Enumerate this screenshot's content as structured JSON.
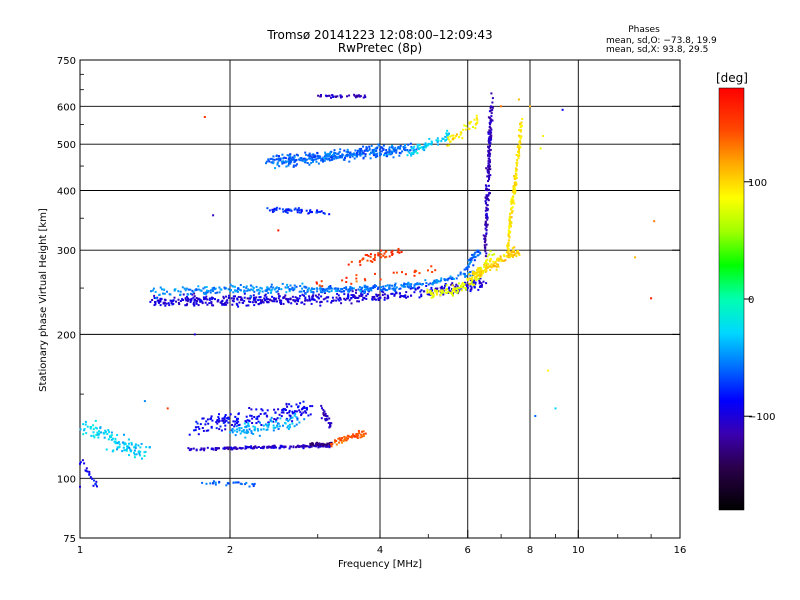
{
  "chart_data": {
    "type": "scatter",
    "title": "Tromsø 20141223 12:08:00–12:09:43",
    "subtitle": "RwPretec (8p)",
    "xlabel": "Frequency [MHz]",
    "ylabel": "Stationary phase Virtual Height [km]",
    "x_scale": "log",
    "y_scale": "log",
    "xlim": [
      1,
      16
    ],
    "ylim": [
      75,
      750
    ],
    "x_ticks": [
      "1",
      "2",
      "4",
      "6",
      "8",
      "10",
      "16"
    ],
    "x_tick_values": [
      1,
      2,
      4,
      6,
      8,
      10,
      16
    ],
    "y_ticks": [
      "75",
      "100",
      "200",
      "300",
      "400",
      "500",
      "600",
      "750"
    ],
    "y_tick_values": [
      75,
      100,
      200,
      300,
      400,
      500,
      600,
      750
    ],
    "grid": true,
    "phases_box": {
      "title": "Phases",
      "line1": "mean, sd,O: −73.8, 19.9",
      "line2": "mean, sd,X:  93.8, 29.5"
    },
    "colorbar": {
      "label": "[deg]",
      "range": [
        -180,
        180
      ],
      "ticks": [
        "100",
        "0",
        "−100"
      ],
      "tick_values": [
        100,
        0,
        -100
      ]
    },
    "series_groups": [
      {
        "f1": 1.0,
        "f2": 1.35,
        "h1": 130,
        "h2": 112,
        "phase": -30,
        "n": 120,
        "spreadF": 0.05,
        "spreadH": 0.06
      },
      {
        "f1": 1.0,
        "f2": 1.08,
        "h1": 110,
        "h2": 96,
        "phase": -90,
        "n": 20,
        "spreadF": 0.02,
        "spreadH": 0.02
      },
      {
        "f1": 1.78,
        "f2": 2.25,
        "h1": 98,
        "h2": 97,
        "phase": -60,
        "n": 28,
        "spreadF": 0.02,
        "spreadH": 0.015
      },
      {
        "f1": 1.65,
        "f2": 3.2,
        "h1": 115,
        "h2": 117,
        "phase": -105,
        "n": 180,
        "spreadF": 0.01,
        "spreadH": 0.01
      },
      {
        "f1": 2.9,
        "f2": 3.2,
        "h1": 118,
        "h2": 118,
        "phase": -130,
        "n": 40,
        "spreadF": 0.015,
        "spreadH": 0.01
      },
      {
        "f1": 3.2,
        "f2": 3.75,
        "h1": 118,
        "h2": 125,
        "phase": 140,
        "n": 60,
        "spreadF": 0.02,
        "spreadH": 0.02
      },
      {
        "f1": 1.7,
        "f2": 2.9,
        "h1": 128,
        "h2": 140,
        "phase": -90,
        "n": 170,
        "spreadF": 0.04,
        "spreadH": 0.06
      },
      {
        "f1": 2.0,
        "f2": 2.8,
        "h1": 125,
        "h2": 132,
        "phase": -40,
        "n": 90,
        "spreadF": 0.03,
        "spreadH": 0.05
      },
      {
        "f1": 3.05,
        "f2": 3.2,
        "h1": 140,
        "h2": 128,
        "phase": -110,
        "n": 30,
        "spreadF": 0.01,
        "spreadH": 0.04
      },
      {
        "f1": 1.4,
        "f2": 6.5,
        "h1": 235,
        "h2": 255,
        "phase": -100,
        "n": 520,
        "spreadF": 0.02,
        "spreadH": 0.04,
        "bend": true
      },
      {
        "f1": 1.4,
        "f2": 2.8,
        "h1": 245,
        "h2": 250,
        "phase": -50,
        "n": 170,
        "spreadF": 0.04,
        "spreadH": 0.03
      },
      {
        "f1": 2.8,
        "f2": 6.2,
        "h1": 248,
        "h2": 270,
        "phase": -55,
        "n": 230,
        "spreadF": 0.02,
        "spreadH": 0.025,
        "bend": true
      },
      {
        "f1": 5.0,
        "f2": 6.8,
        "h1": 245,
        "h2": 300,
        "phase": 80,
        "n": 110,
        "spreadF": 0.015,
        "spreadH": 0.04,
        "bend": true
      },
      {
        "f1": 6.0,
        "f2": 7.6,
        "h1": 262,
        "h2": 300,
        "phase": 100,
        "n": 120,
        "spreadF": 0.02,
        "spreadH": 0.04
      },
      {
        "f1": 7.2,
        "f2": 7.7,
        "h1": 300,
        "h2": 560,
        "phase": 95,
        "n": 160,
        "spreadF": 0.01,
        "spreadH": 0.05
      },
      {
        "f1": 6.5,
        "f2": 6.7,
        "h1": 300,
        "h2": 620,
        "phase": -110,
        "n": 190,
        "spreadF": 0.012,
        "spreadH": 0.08
      },
      {
        "f1": 5.9,
        "f2": 6.3,
        "h1": 270,
        "h2": 300,
        "phase": -60,
        "n": 40,
        "spreadF": 0.02,
        "spreadH": 0.03
      },
      {
        "f1": 3.5,
        "f2": 4.4,
        "h1": 282,
        "h2": 300,
        "phase": 150,
        "n": 45,
        "spreadF": 0.03,
        "spreadH": 0.03
      },
      {
        "f1": 3.0,
        "f2": 5.5,
        "h1": 255,
        "h2": 275,
        "phase": 150,
        "n": 30,
        "spreadF": 0.04,
        "spreadH": 0.03
      },
      {
        "f1": 2.4,
        "f2": 4.6,
        "h1": 460,
        "h2": 490,
        "phase": -60,
        "n": 380,
        "spreadF": 0.05,
        "spreadH": 0.04
      },
      {
        "f1": 4.6,
        "f2": 5.6,
        "h1": 480,
        "h2": 525,
        "phase": -30,
        "n": 70,
        "spreadF": 0.03,
        "spreadH": 0.03
      },
      {
        "f1": 5.4,
        "f2": 6.3,
        "h1": 500,
        "h2": 560,
        "phase": 90,
        "n": 40,
        "spreadF": 0.02,
        "spreadH": 0.04
      },
      {
        "f1": 2.4,
        "f2": 3.1,
        "h1": 365,
        "h2": 360,
        "phase": -80,
        "n": 55,
        "spreadF": 0.04,
        "spreadH": 0.02
      },
      {
        "f1": 3.0,
        "f2": 3.7,
        "h1": 630,
        "h2": 630,
        "phase": -110,
        "n": 40,
        "spreadF": 0.03,
        "spreadH": 0.01
      }
    ],
    "isolated_points": [
      {
        "f": 1.78,
        "h": 570,
        "phase": 160
      },
      {
        "f": 1.85,
        "h": 355,
        "phase": -110
      },
      {
        "f": 1.7,
        "h": 200,
        "phase": -100
      },
      {
        "f": 2.2,
        "h": 240,
        "phase": -40
      },
      {
        "f": 2.5,
        "h": 330,
        "phase": 170
      },
      {
        "f": 7.6,
        "h": 620,
        "phase": 110
      },
      {
        "f": 8.0,
        "h": 600,
        "phase": 110
      },
      {
        "f": 9.3,
        "h": 590,
        "phase": -90
      },
      {
        "f": 8.5,
        "h": 520,
        "phase": 90
      },
      {
        "f": 8.4,
        "h": 490,
        "phase": 80
      },
      {
        "f": 13.0,
        "h": 290,
        "phase": 110
      },
      {
        "f": 14.2,
        "h": 345,
        "phase": 130
      },
      {
        "f": 14.0,
        "h": 238,
        "phase": 170
      },
      {
        "f": 8.2,
        "h": 135,
        "phase": -60
      },
      {
        "f": 9.0,
        "h": 140,
        "phase": -30
      },
      {
        "f": 8.7,
        "h": 168,
        "phase": 90
      },
      {
        "f": 1.5,
        "h": 140,
        "phase": 150
      },
      {
        "f": 1.35,
        "h": 145,
        "phase": -50
      },
      {
        "f": 1.0,
        "h": 96,
        "phase": -100
      },
      {
        "f": 7.0,
        "h": 600,
        "phase": 130
      }
    ]
  }
}
